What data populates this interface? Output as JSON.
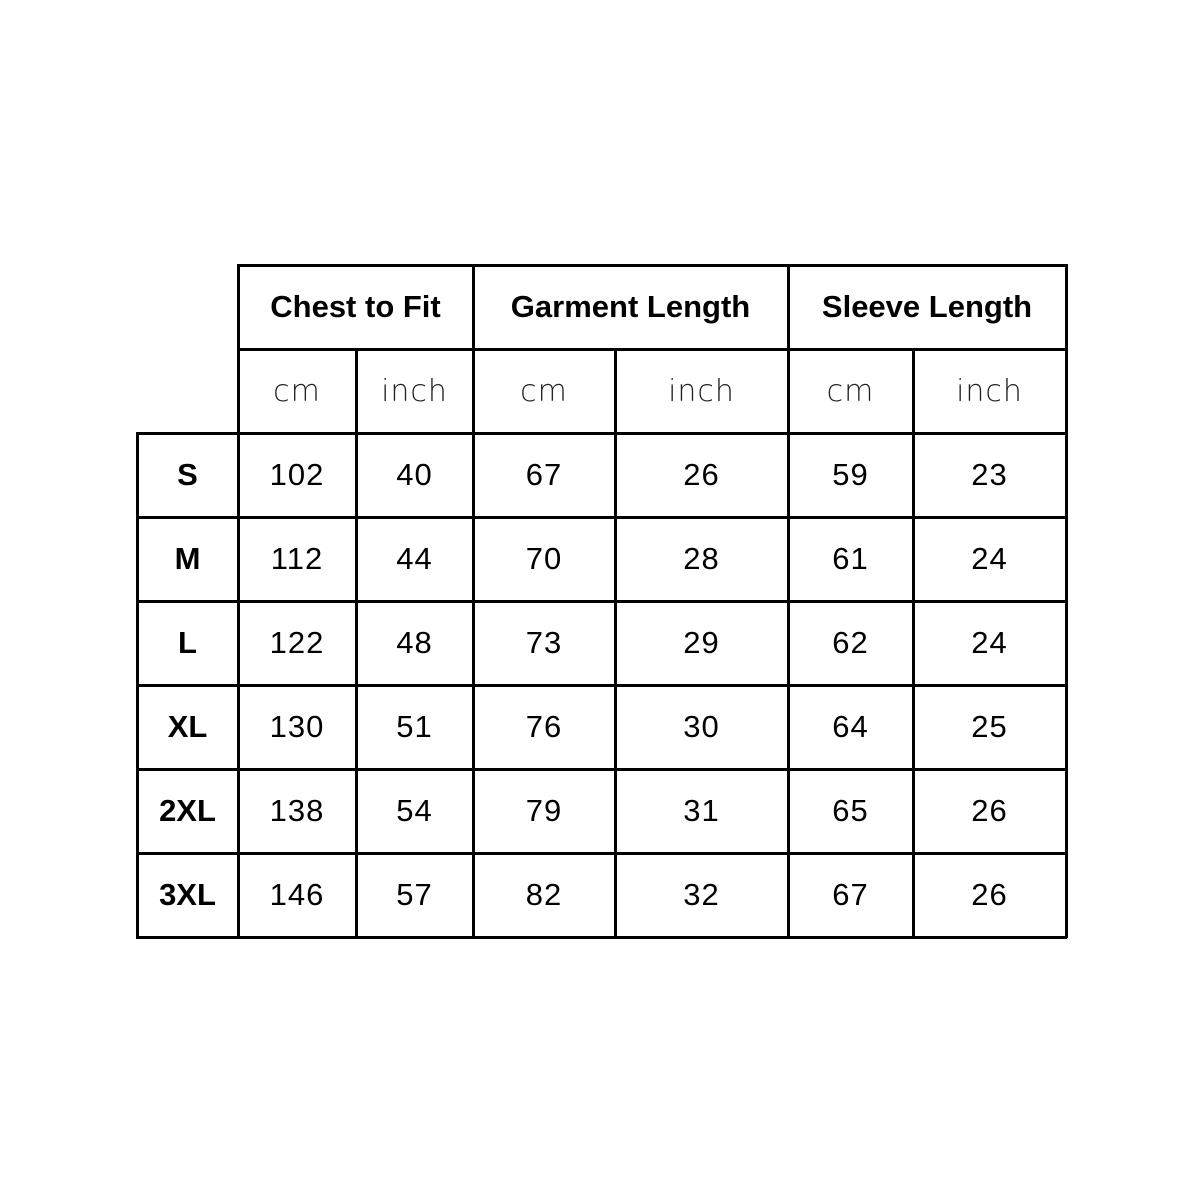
{
  "groups": [
    {
      "label": "Chest to Fit",
      "units": [
        "cm",
        "inch"
      ]
    },
    {
      "label": "Garment Length",
      "units": [
        "cm",
        "inch"
      ]
    },
    {
      "label": "Sleeve Length",
      "units": [
        "cm",
        "inch"
      ]
    }
  ],
  "rows": [
    {
      "size": "S",
      "values": [
        "102",
        "40",
        "67",
        "26",
        "59",
        "23"
      ]
    },
    {
      "size": "M",
      "values": [
        "112",
        "44",
        "70",
        "28",
        "61",
        "24"
      ]
    },
    {
      "size": "L",
      "values": [
        "122",
        "48",
        "73",
        "29",
        "62",
        "24"
      ]
    },
    {
      "size": "XL",
      "values": [
        "130",
        "51",
        "76",
        "30",
        "64",
        "25"
      ]
    },
    {
      "size": "2XL",
      "values": [
        "138",
        "54",
        "79",
        "31",
        "65",
        "26"
      ]
    },
    {
      "size": "3XL",
      "values": [
        "146",
        "57",
        "82",
        "32",
        "67",
        "26"
      ]
    }
  ]
}
